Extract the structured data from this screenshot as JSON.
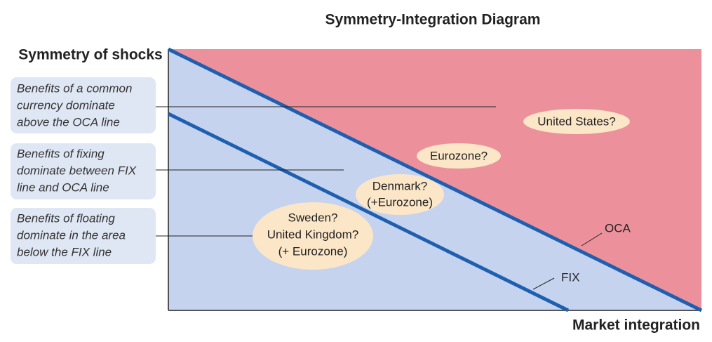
{
  "title": "Symmetry-Integration Diagram",
  "axes": {
    "y_label": "Symmetry of shocks",
    "x_label": "Market integration"
  },
  "notes": [
    {
      "lines": [
        "Benefits of a common",
        "currency dominate",
        "above the OCA line"
      ]
    },
    {
      "lines": [
        "Benefits of fixing",
        "dominate between FIX",
        "line and OCA line"
      ]
    },
    {
      "lines": [
        "Benefits of floating",
        "dominate in the area",
        "below the FIX line"
      ]
    }
  ],
  "line_labels": {
    "oca": "OCA",
    "fix": "FIX"
  },
  "countries": [
    {
      "lines": [
        "United States?"
      ]
    },
    {
      "lines": [
        "Eurozone?"
      ]
    },
    {
      "lines": [
        "Denmark?",
        "(+Eurozone)"
      ]
    },
    {
      "lines": [
        "Sweden?",
        "United Kingdom?",
        "(+ Eurozone)"
      ]
    }
  ]
}
